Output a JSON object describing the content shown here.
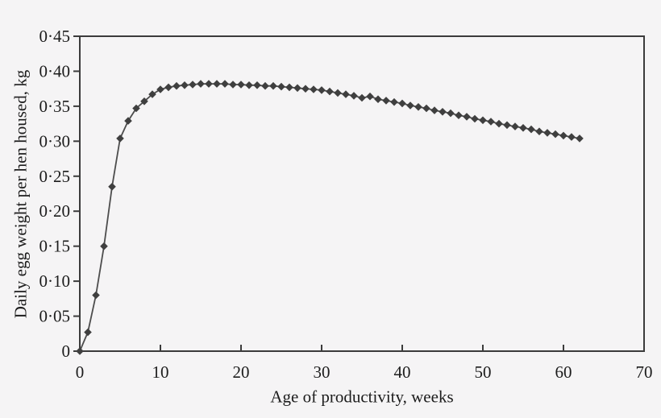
{
  "figure": {
    "background": "#f5f4f5",
    "axis_color": "#3b3b3b",
    "line_color": "#4d4d4d",
    "marker_color": "#3f3f3f",
    "text_color": "#1c1c1c"
  },
  "chart_data": {
    "type": "line",
    "title": "",
    "xlabel": "Age of productivity, weeks",
    "ylabel": "Daily egg weight per hen housed, kg",
    "xlim": [
      0,
      70
    ],
    "ylim": [
      0,
      0.45
    ],
    "grid": false,
    "legend": "none",
    "marker": "diamond",
    "x_ticks": [
      0,
      10,
      20,
      30,
      40,
      50,
      60,
      70
    ],
    "x_tick_labels": [
      "0",
      "10",
      "20",
      "30",
      "40",
      "50",
      "60",
      "70"
    ],
    "y_ticks": [
      0,
      0.05,
      0.1,
      0.15,
      0.2,
      0.25,
      0.3,
      0.35,
      0.4,
      0.45
    ],
    "y_tick_labels": [
      "0",
      "0·05",
      "0·10",
      "0·15",
      "0·20",
      "0·25",
      "0·30",
      "0·35",
      "0·40",
      "0·45"
    ],
    "series": [
      {
        "name": "daily egg weight per hen housed",
        "x": [
          0,
          1,
          2,
          3,
          4,
          5,
          6,
          7,
          8,
          9,
          10,
          11,
          12,
          13,
          14,
          15,
          16,
          17,
          18,
          19,
          20,
          21,
          22,
          23,
          24,
          25,
          26,
          27,
          28,
          29,
          30,
          31,
          32,
          33,
          34,
          35,
          36,
          37,
          38,
          39,
          40,
          41,
          42,
          43,
          44,
          45,
          46,
          47,
          48,
          49,
          50,
          51,
          52,
          53,
          54,
          55,
          56,
          57,
          58,
          59,
          60,
          61,
          62
        ],
        "y": [
          0,
          0.027,
          0.08,
          0.15,
          0.235,
          0.304,
          0.329,
          0.347,
          0.357,
          0.367,
          0.374,
          0.377,
          0.379,
          0.38,
          0.381,
          0.382,
          0.382,
          0.382,
          0.382,
          0.381,
          0.381,
          0.38,
          0.38,
          0.379,
          0.379,
          0.378,
          0.377,
          0.376,
          0.375,
          0.374,
          0.373,
          0.371,
          0.369,
          0.367,
          0.365,
          0.362,
          0.364,
          0.36,
          0.358,
          0.356,
          0.354,
          0.351,
          0.349,
          0.347,
          0.344,
          0.342,
          0.34,
          0.337,
          0.335,
          0.332,
          0.33,
          0.328,
          0.325,
          0.323,
          0.321,
          0.319,
          0.317,
          0.314,
          0.312,
          0.31,
          0.308,
          0.306,
          0.304
        ]
      }
    ]
  }
}
